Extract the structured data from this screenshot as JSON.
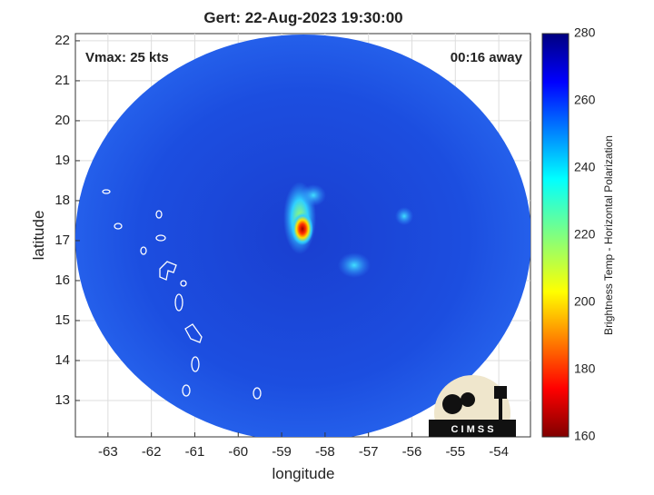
{
  "chart_data": {
    "type": "map",
    "title": "Gert: 22-Aug-2023 19:30:00",
    "annotations": [
      "Vmax: 25 kts",
      "00:16 away"
    ],
    "xlabel": "longitude",
    "ylabel": "latitude",
    "xlim": [
      -63.75,
      -53.27
    ],
    "ylim": [
      12.09,
      22.18
    ],
    "xticks": [
      -63,
      -62,
      -61,
      -60,
      -59,
      -58,
      -57,
      -56,
      -55,
      -54
    ],
    "yticks": [
      13,
      14,
      15,
      16,
      17,
      18,
      19,
      20,
      21,
      22
    ],
    "grid": true,
    "colorbar": {
      "label": "Brightness Temp - Horizontal Polarization",
      "colormap": "jet",
      "lim": [
        160,
        280
      ],
      "ticks": [
        160,
        180,
        200,
        220,
        240,
        260,
        280
      ]
    },
    "logo_text": "C I M S S"
  }
}
